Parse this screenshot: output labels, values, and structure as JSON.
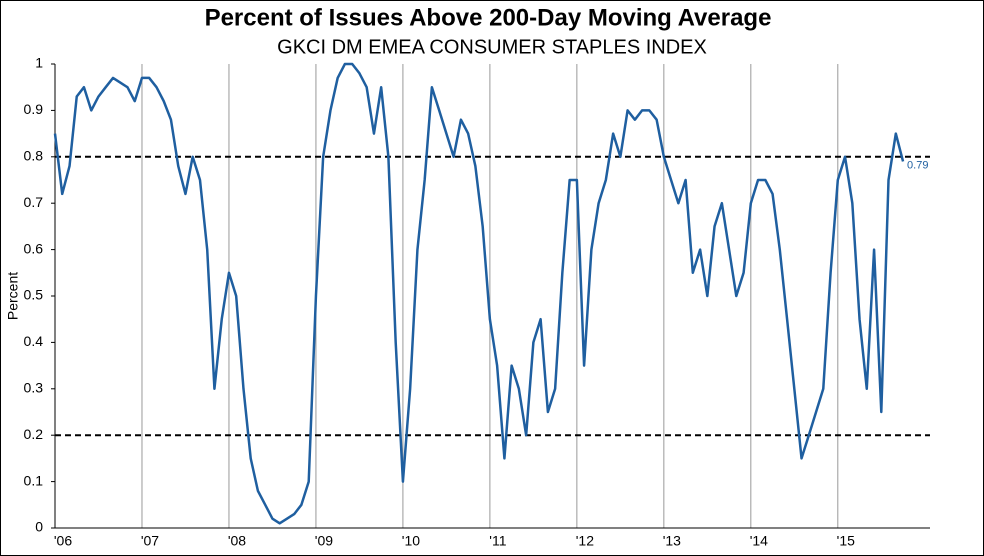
{
  "chart_data": {
    "type": "line",
    "title": "Percent of Issues Above 200-Day Moving Average",
    "subtitle": "GKCI DM EMEA CONSUMER STAPLES INDEX",
    "y_label": "Percent",
    "x": [
      2006,
      2006.083,
      2006.167,
      2006.25,
      2006.333,
      2006.417,
      2006.5,
      2006.583,
      2006.667,
      2006.75,
      2006.833,
      2006.917,
      2007,
      2007.083,
      2007.167,
      2007.25,
      2007.333,
      2007.417,
      2007.5,
      2007.583,
      2007.667,
      2007.75,
      2007.833,
      2007.917,
      2008,
      2008.083,
      2008.167,
      2008.25,
      2008.333,
      2008.417,
      2008.5,
      2008.583,
      2008.667,
      2008.75,
      2008.833,
      2008.917,
      2009,
      2009.083,
      2009.167,
      2009.25,
      2009.333,
      2009.417,
      2009.5,
      2009.583,
      2009.667,
      2009.75,
      2009.833,
      2009.917,
      2010,
      2010.083,
      2010.167,
      2010.25,
      2010.333,
      2010.417,
      2010.5,
      2010.583,
      2010.667,
      2010.75,
      2010.833,
      2010.917,
      2011,
      2011.083,
      2011.167,
      2011.25,
      2011.333,
      2011.417,
      2011.5,
      2011.583,
      2011.667,
      2011.75,
      2011.833,
      2011.917,
      2012,
      2012.083,
      2012.167,
      2012.25,
      2012.333,
      2012.417,
      2012.5,
      2012.583,
      2012.667,
      2012.75,
      2012.833,
      2012.917,
      2013,
      2013.083,
      2013.167,
      2013.25,
      2013.333,
      2013.417,
      2013.5,
      2013.583,
      2013.667,
      2013.75,
      2013.833,
      2013.917,
      2014,
      2014.083,
      2014.167,
      2014.25,
      2014.333,
      2014.417,
      2014.5,
      2014.583,
      2014.667,
      2014.75,
      2014.833,
      2014.917,
      2015,
      2015.083,
      2015.167,
      2015.25,
      2015.333,
      2015.417,
      2015.5,
      2015.583,
      2015.667,
      2015.75
    ],
    "series": [
      {
        "color": "#1f5fa0",
        "values": [
          0.85,
          0.72,
          0.78,
          0.93,
          0.95,
          0.9,
          0.93,
          0.95,
          0.97,
          0.96,
          0.95,
          0.92,
          0.97,
          0.97,
          0.95,
          0.92,
          0.88,
          0.78,
          0.72,
          0.8,
          0.75,
          0.6,
          0.3,
          0.45,
          0.55,
          0.5,
          0.3,
          0.15,
          0.08,
          0.05,
          0.02,
          0.01,
          0.02,
          0.03,
          0.05,
          0.1,
          0.5,
          0.8,
          0.9,
          0.97,
          1,
          1,
          0.98,
          0.95,
          0.85,
          0.95,
          0.8,
          0.4,
          0.1,
          0.3,
          0.6,
          0.75,
          0.95,
          0.9,
          0.85,
          0.8,
          0.88,
          0.85,
          0.78,
          0.65,
          0.45,
          0.35,
          0.15,
          0.35,
          0.3,
          0.2,
          0.4,
          0.45,
          0.25,
          0.3,
          0.55,
          0.75,
          0.75,
          0.35,
          0.6,
          0.7,
          0.75,
          0.85,
          0.8,
          0.9,
          0.88,
          0.9,
          0.9,
          0.88,
          0.8,
          0.75,
          0.7,
          0.75,
          0.55,
          0.6,
          0.5,
          0.65,
          0.7,
          0.6,
          0.5,
          0.55,
          0.7,
          0.75,
          0.75,
          0.72,
          0.6,
          0.45,
          0.3,
          0.15,
          0.2,
          0.25,
          0.3,
          0.55,
          0.75,
          0.8,
          0.7,
          0.45,
          0.3,
          0.6,
          0.25,
          0.75,
          0.85,
          0.79
        ]
      }
    ],
    "last_value_label": 0.79,
    "reference_lines": [
      0.8,
      0.2
    ],
    "xlim": [
      2006,
      2016.06
    ],
    "xticks": [
      {
        "value": 2006,
        "label": "'06"
      },
      {
        "value": 2007,
        "label": "'07"
      },
      {
        "value": 2008,
        "label": "'08"
      },
      {
        "value": 2009,
        "label": "'09"
      },
      {
        "value": 2010,
        "label": "'10"
      },
      {
        "value": 2011,
        "label": "'11"
      },
      {
        "value": 2012,
        "label": "'12"
      },
      {
        "value": 2013,
        "label": "'13"
      },
      {
        "value": 2014,
        "label": "'14"
      },
      {
        "value": 2015,
        "label": "'15"
      }
    ],
    "ylim": [
      0,
      1
    ],
    "yticks": [
      0,
      0.1,
      0.2,
      0.3,
      0.4,
      0.5,
      0.6,
      0.7,
      0.8,
      0.9,
      1
    ],
    "grid": true
  }
}
